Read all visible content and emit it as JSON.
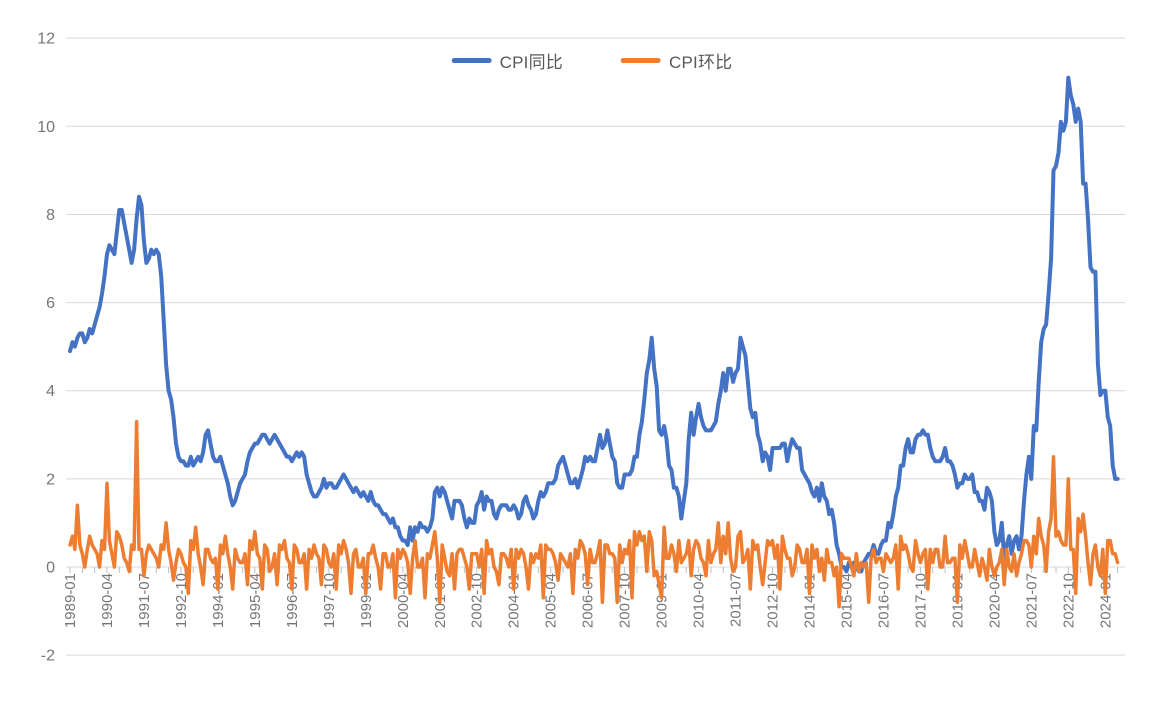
{
  "chart_data": {
    "type": "line",
    "title": "",
    "xlabel": "",
    "ylabel": "",
    "x_unit": "month",
    "x_range": [
      "1989-01",
      "2024-06"
    ],
    "x_tick_interval_months": 15,
    "x_minor_tick_interval_months": 5,
    "x_tick_labels": [
      "1989-01",
      "1990-04",
      "1991-07",
      "1992-10",
      "1994-01",
      "1995-04",
      "1996-07",
      "1997-10",
      "1999-01",
      "2000-04",
      "2001-07",
      "2002-10",
      "2004-01",
      "2005-04",
      "2006-07",
      "2007-10",
      "2009-01",
      "2010-04",
      "2011-07",
      "2012-10",
      "2014-01",
      "2015-04",
      "2016-07",
      "2017-10",
      "2019-01",
      "2020-04",
      "2021-07",
      "2022-10",
      "2024-01"
    ],
    "y_ticks": [
      12,
      10,
      8,
      6,
      4,
      2,
      0,
      -2
    ],
    "ylim": [
      -2,
      12
    ],
    "grid": "horizontal",
    "gridline_color": "#d9d9d9",
    "tick_color": "#bfbfbf",
    "axis_label_color": "#767676",
    "legend_position": "top-center",
    "legend_text_color": "#595959",
    "series": [
      {
        "name": "CPI同比",
        "color": "#4472C4",
        "stroke_width": 4,
        "values": [
          4.9,
          5.1,
          5.0,
          5.2,
          5.3,
          5.3,
          5.1,
          5.2,
          5.4,
          5.3,
          5.5,
          5.7,
          5.9,
          6.2,
          6.6,
          7.1,
          7.3,
          7.2,
          7.1,
          7.6,
          8.1,
          8.1,
          7.8,
          7.5,
          7.2,
          6.9,
          7.2,
          7.9,
          8.4,
          8.2,
          7.4,
          6.9,
          7.0,
          7.2,
          7.1,
          7.2,
          7.1,
          6.6,
          5.6,
          4.6,
          4.0,
          3.8,
          3.4,
          2.8,
          2.5,
          2.4,
          2.4,
          2.3,
          2.3,
          2.5,
          2.3,
          2.4,
          2.5,
          2.4,
          2.6,
          3.0,
          3.1,
          2.8,
          2.5,
          2.4,
          2.4,
          2.5,
          2.3,
          2.1,
          1.9,
          1.6,
          1.4,
          1.5,
          1.7,
          1.9,
          2.0,
          2.1,
          2.4,
          2.6,
          2.7,
          2.8,
          2.8,
          2.9,
          3.0,
          3.0,
          2.9,
          2.8,
          2.9,
          3.0,
          2.9,
          2.8,
          2.7,
          2.6,
          2.5,
          2.5,
          2.4,
          2.5,
          2.6,
          2.5,
          2.6,
          2.5,
          2.1,
          1.9,
          1.7,
          1.6,
          1.6,
          1.7,
          1.8,
          2.0,
          1.8,
          1.9,
          1.9,
          1.8,
          1.8,
          1.9,
          2.0,
          2.1,
          2.0,
          1.9,
          1.8,
          1.7,
          1.8,
          1.7,
          1.6,
          1.7,
          1.6,
          1.5,
          1.7,
          1.5,
          1.4,
          1.4,
          1.3,
          1.2,
          1.2,
          1.1,
          1.0,
          1.1,
          0.9,
          0.9,
          0.7,
          0.6,
          0.6,
          0.5,
          0.9,
          0.6,
          0.9,
          0.8,
          1.0,
          0.9,
          0.9,
          0.8,
          0.9,
          1.1,
          1.7,
          1.8,
          1.6,
          1.8,
          1.7,
          1.5,
          1.3,
          1.1,
          1.5,
          1.5,
          1.5,
          1.4,
          1.1,
          0.9,
          1.1,
          1.0,
          1.0,
          1.4,
          1.5,
          1.7,
          1.3,
          1.6,
          1.5,
          1.5,
          1.2,
          1.1,
          1.3,
          1.4,
          1.4,
          1.4,
          1.3,
          1.3,
          1.4,
          1.3,
          1.1,
          1.2,
          1.5,
          1.6,
          1.4,
          1.3,
          1.1,
          1.2,
          1.5,
          1.7,
          1.6,
          1.7,
          1.9,
          1.9,
          1.9,
          2.0,
          2.3,
          2.4,
          2.5,
          2.3,
          2.1,
          1.9,
          1.9,
          2.0,
          1.8,
          2.0,
          2.2,
          2.5,
          2.4,
          2.5,
          2.4,
          2.4,
          2.7,
          3.0,
          2.7,
          2.8,
          3.1,
          2.8,
          2.5,
          2.4,
          1.9,
          1.8,
          1.8,
          2.1,
          2.1,
          2.1,
          2.2,
          2.5,
          2.5,
          3.0,
          3.3,
          3.8,
          4.4,
          4.7,
          5.2,
          4.5,
          4.1,
          3.1,
          3.0,
          3.2,
          2.9,
          2.3,
          2.2,
          1.8,
          1.8,
          1.6,
          1.1,
          1.5,
          1.9,
          2.9,
          3.5,
          3.0,
          3.4,
          3.7,
          3.4,
          3.2,
          3.1,
          3.1,
          3.1,
          3.2,
          3.3,
          3.7,
          4.0,
          4.4,
          4.0,
          4.5,
          4.5,
          4.2,
          4.4,
          4.5,
          5.2,
          5.0,
          4.8,
          4.2,
          3.6,
          3.4,
          3.5,
          3.0,
          2.8,
          2.4,
          2.6,
          2.5,
          2.2,
          2.7,
          2.7,
          2.7,
          2.7,
          2.8,
          2.8,
          2.4,
          2.7,
          2.9,
          2.8,
          2.7,
          2.7,
          2.2,
          2.1,
          2.0,
          1.9,
          1.7,
          1.6,
          1.8,
          1.5,
          1.9,
          1.6,
          1.5,
          1.2,
          1.3,
          1.0,
          0.5,
          0.3,
          0.0,
          0.0,
          -0.1,
          0.1,
          0.0,
          0.1,
          0.0,
          -0.1,
          -0.1,
          0.1,
          0.2,
          0.3,
          0.3,
          0.5,
          0.3,
          0.3,
          0.5,
          0.6,
          0.6,
          1.0,
          0.9,
          1.2,
          1.6,
          1.8,
          2.3,
          2.3,
          2.7,
          2.9,
          2.6,
          2.6,
          2.9,
          3.0,
          3.0,
          3.1,
          3.0,
          3.0,
          2.7,
          2.5,
          2.4,
          2.4,
          2.4,
          2.5,
          2.7,
          2.4,
          2.4,
          2.3,
          2.1,
          1.8,
          1.9,
          1.9,
          2.1,
          2.0,
          2.0,
          2.1,
          1.7,
          1.7,
          1.5,
          1.5,
          1.3,
          1.8,
          1.7,
          1.5,
          0.8,
          0.5,
          0.6,
          1.0,
          0.2,
          0.5,
          0.7,
          0.3,
          0.6,
          0.7,
          0.4,
          0.7,
          1.5,
          2.1,
          2.5,
          2.0,
          3.2,
          3.1,
          4.2,
          5.1,
          5.4,
          5.5,
          6.2,
          7.0,
          9.0,
          9.1,
          9.4,
          10.1,
          9.9,
          10.1,
          11.1,
          10.7,
          10.5,
          10.1,
          10.4,
          10.1,
          8.7,
          8.7,
          7.9,
          6.8,
          6.7,
          6.7,
          4.6,
          3.9,
          4.0,
          4.0,
          3.4,
          3.2,
          2.3,
          2.0,
          2.0
        ]
      },
      {
        "name": "CPI环比",
        "color": "#ED7D31",
        "stroke_width": 3.5,
        "values": [
          0.5,
          0.7,
          0.4,
          1.4,
          0.5,
          0.3,
          0.0,
          0.4,
          0.7,
          0.5,
          0.4,
          0.3,
          0.0,
          0.6,
          0.4,
          1.9,
          0.6,
          0.3,
          0.0,
          0.8,
          0.7,
          0.5,
          0.2,
          0.1,
          -0.1,
          0.5,
          0.4,
          3.3,
          0.4,
          0.4,
          -0.2,
          0.3,
          0.5,
          0.4,
          0.3,
          0.2,
          0.0,
          0.5,
          0.4,
          1.0,
          0.4,
          0.1,
          -0.3,
          0.1,
          0.4,
          0.3,
          0.1,
          0.0,
          -0.6,
          0.6,
          0.4,
          0.9,
          0.3,
          0.0,
          -0.4,
          0.4,
          0.4,
          0.2,
          0.1,
          0.2,
          -0.5,
          0.5,
          0.3,
          0.7,
          0.3,
          0.0,
          -0.5,
          0.4,
          0.2,
          0.1,
          0.1,
          0.3,
          -0.4,
          0.6,
          0.4,
          0.8,
          0.3,
          0.2,
          -0.5,
          0.5,
          0.4,
          -0.1,
          0.0,
          0.3,
          -0.4,
          0.5,
          0.4,
          0.6,
          0.2,
          0.1,
          -0.5,
          0.5,
          0.4,
          0.1,
          0.1,
          0.3,
          -0.5,
          0.4,
          0.2,
          0.5,
          0.3,
          0.2,
          -0.4,
          0.5,
          0.4,
          0.1,
          0.0,
          0.3,
          -0.5,
          0.5,
          0.3,
          0.6,
          0.4,
          0.1,
          -0.6,
          0.3,
          0.4,
          0.0,
          0.0,
          0.2,
          -0.6,
          0.3,
          0.3,
          0.5,
          0.2,
          0.0,
          -0.5,
          0.3,
          0.3,
          0.0,
          0.0,
          0.3,
          -0.7,
          0.4,
          0.2,
          0.4,
          0.3,
          0.1,
          -0.6,
          0.2,
          0.6,
          0.0,
          0.0,
          0.2,
          -0.7,
          0.3,
          0.2,
          0.5,
          0.8,
          0.2,
          -0.8,
          0.5,
          0.2,
          -0.1,
          -0.2,
          0.3,
          -0.5,
          0.3,
          0.4,
          0.4,
          0.2,
          0.0,
          -0.5,
          0.3,
          0.3,
          0.3,
          0.0,
          0.4,
          -0.6,
          0.6,
          0.3,
          0.4,
          0.0,
          -0.1,
          -0.4,
          0.3,
          0.3,
          0.2,
          0.0,
          0.4,
          -0.5,
          0.4,
          0.2,
          0.4,
          0.3,
          0.0,
          -0.5,
          0.3,
          0.1,
          0.3,
          0.2,
          0.5,
          -0.7,
          0.5,
          0.4,
          0.4,
          0.3,
          0.1,
          -0.3,
          0.3,
          0.2,
          0.1,
          0.0,
          0.3,
          -0.6,
          0.4,
          0.2,
          0.6,
          0.5,
          0.3,
          -0.4,
          0.4,
          0.1,
          0.1,
          0.3,
          0.6,
          -0.8,
          0.5,
          0.5,
          0.3,
          0.3,
          0.2,
          -0.8,
          0.5,
          0.1,
          0.4,
          0.3,
          0.6,
          -0.7,
          0.8,
          0.5,
          0.8,
          0.6,
          0.7,
          -0.1,
          0.8,
          0.6,
          -0.2,
          -0.1,
          -0.4,
          -0.7,
          0.9,
          0.2,
          0.2,
          0.5,
          0.3,
          -0.1,
          0.6,
          0.1,
          0.2,
          0.3,
          0.6,
          -0.2,
          0.4,
          0.6,
          0.5,
          0.2,
          0.1,
          -0.2,
          0.6,
          0.1,
          0.3,
          0.4,
          1.0,
          0.1,
          0.7,
          0.3,
          1.0,
          0.2,
          -0.1,
          0.0,
          0.7,
          0.8,
          0.1,
          0.2,
          0.4,
          -0.5,
          0.6,
          0.4,
          0.5,
          0.0,
          -0.4,
          0.1,
          0.6,
          0.5,
          0.6,
          0.2,
          0.5,
          -0.5,
          0.7,
          0.4,
          0.2,
          0.2,
          -0.2,
          0.0,
          0.5,
          0.4,
          0.1,
          0.1,
          0.4,
          -0.6,
          0.5,
          0.2,
          0.4,
          -0.1,
          0.2,
          -0.3,
          0.4,
          0.1,
          0.1,
          -0.2,
          0.0,
          -0.9,
          0.3,
          0.2,
          0.2,
          0.2,
          0.0,
          -0.2,
          0.3,
          -0.1,
          0.1,
          0.0,
          0.1,
          -0.8,
          0.2,
          0.4,
          0.1,
          0.2,
          0.2,
          -0.1,
          0.3,
          0.2,
          0.1,
          0.2,
          0.5,
          -0.5,
          0.7,
          0.4,
          0.5,
          0.3,
          0.0,
          -0.1,
          0.6,
          0.3,
          0.1,
          0.3,
          0.4,
          -0.5,
          0.4,
          0.1,
          0.4,
          0.4,
          0.0,
          0.0,
          0.7,
          0.1,
          0.1,
          0.2,
          0.2,
          -0.8,
          0.5,
          0.2,
          0.6,
          0.3,
          0.0,
          0.0,
          0.4,
          0.1,
          -0.2,
          0.2,
          0.0,
          -0.3,
          0.4,
          0.0,
          -0.2,
          0.0,
          0.1,
          0.4,
          -0.4,
          0.4,
          0.0,
          -0.1,
          0.3,
          -0.2,
          0.1,
          0.3,
          0.6,
          0.6,
          0.5,
          0.0,
          0.7,
          0.3,
          1.1,
          0.7,
          0.5,
          -0.1,
          0.8,
          1.1,
          2.5,
          0.7,
          0.8,
          0.6,
          0.5,
          0.5,
          2.0,
          0.4,
          0.4,
          -0.6,
          1.1,
          0.8,
          1.2,
          0.7,
          0.1,
          -0.4,
          0.3,
          0.5,
          0.0,
          -0.2,
          0.4,
          -0.6,
          0.6,
          0.6,
          0.3,
          0.3,
          0.1
        ]
      }
    ]
  }
}
